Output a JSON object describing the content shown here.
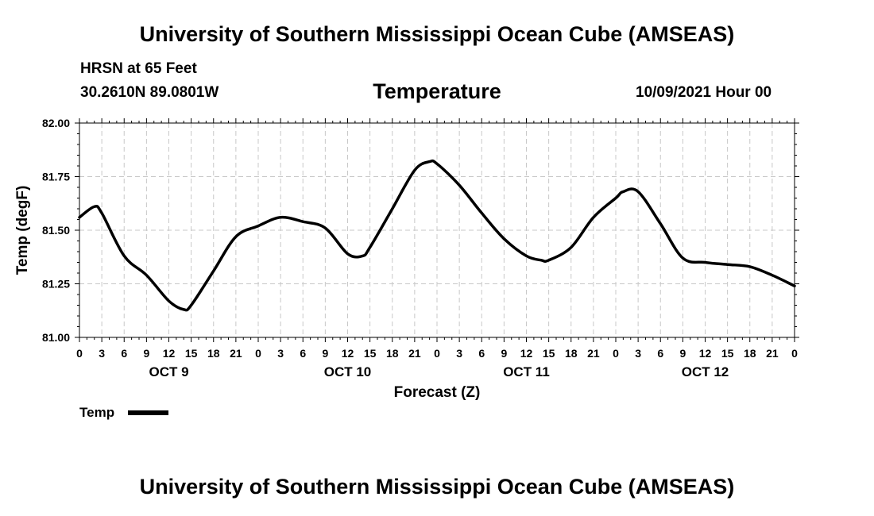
{
  "header": {
    "title": "University of Southern Mississippi Ocean Cube (AMSEAS)",
    "station": "HRSN at 65 Feet",
    "coords": "30.2610N  89.0801W",
    "chart_title": "Temperature",
    "date": "10/09/2021 Hour 00"
  },
  "footer": {
    "title": "University of Southern Mississippi Ocean Cube (AMSEAS)"
  },
  "chart_data": {
    "type": "line",
    "title": "Temperature",
    "xlabel": "Forecast (Z)",
    "ylabel": "Temp (degF)",
    "xlim": [
      0,
      96
    ],
    "ylim": [
      81.0,
      82.0
    ],
    "grid": true,
    "yticks": [
      81.0,
      81.25,
      81.5,
      81.75,
      82.0
    ],
    "ytick_labels": [
      "81.00",
      "81.25",
      "81.50",
      "81.75",
      "82.00"
    ],
    "xtick_labels": [
      "0",
      "3",
      "6",
      "9",
      "12",
      "15",
      "18",
      "21",
      "0",
      "3",
      "6",
      "9",
      "12",
      "15",
      "18",
      "21",
      "0",
      "3",
      "6",
      "9",
      "12",
      "15",
      "18",
      "21",
      "0",
      "3",
      "6",
      "9",
      "12",
      "15",
      "18",
      "21",
      "0"
    ],
    "day_labels": [
      "OCT 9",
      "OCT 10",
      "OCT 11",
      "OCT 12"
    ],
    "legend": {
      "label": "Temp",
      "position": "bottom-left"
    },
    "series": [
      {
        "name": "Temp",
        "x": [
          0,
          2,
          3,
          6,
          9,
          12,
          14,
          15,
          18,
          21,
          24,
          27,
          30,
          33,
          36,
          38,
          39,
          42,
          45,
          47,
          48,
          51,
          54,
          57,
          60,
          62,
          63,
          66,
          69,
          72,
          73,
          75,
          78,
          81,
          84,
          87,
          90,
          93,
          96
        ],
        "y": [
          81.56,
          81.61,
          81.58,
          81.38,
          81.29,
          81.17,
          81.13,
          81.15,
          81.31,
          81.47,
          81.52,
          81.56,
          81.54,
          81.51,
          81.39,
          81.38,
          81.42,
          81.6,
          81.78,
          81.82,
          81.81,
          81.71,
          81.58,
          81.46,
          81.38,
          81.36,
          81.36,
          81.42,
          81.56,
          81.65,
          81.68,
          81.68,
          81.53,
          81.37,
          81.35,
          81.34,
          81.33,
          81.29,
          81.24
        ]
      }
    ]
  }
}
